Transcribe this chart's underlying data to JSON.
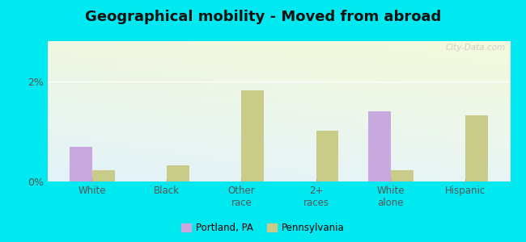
{
  "title": "Geographical mobility - Moved from abroad",
  "categories": [
    "White",
    "Black",
    "Other\nrace",
    "2+\nraces",
    "White\nalone",
    "Hispanic"
  ],
  "portland_values": [
    0.7,
    0.0,
    0.0,
    0.0,
    1.4,
    0.0
  ],
  "pennsylvania_values": [
    0.22,
    0.32,
    1.82,
    1.02,
    0.22,
    1.32
  ],
  "portland_color": "#c9a8e0",
  "pennsylvania_color": "#c8cc88",
  "bar_width": 0.3,
  "ylim": [
    0,
    2.8
  ],
  "yticks": [
    0,
    2
  ],
  "ytick_labels": [
    "0%",
    "2%"
  ],
  "outer_background": "#00e8f0",
  "title_fontsize": 13,
  "legend_labels": [
    "Portland, PA",
    "Pennsylvania"
  ],
  "watermark": "City-Data.com"
}
